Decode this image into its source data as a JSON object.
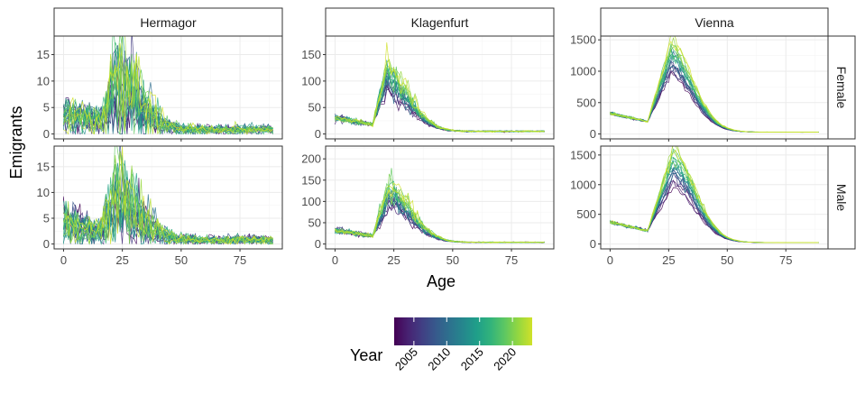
{
  "chart_data": {
    "type": "line",
    "ylabel": "Emigrants",
    "xlabel": "Age",
    "x_range": [
      0,
      89
    ],
    "x_ticks": [
      0,
      25,
      50,
      75
    ],
    "columns": [
      "Hermagor",
      "Klagenfurt",
      "Vienna"
    ],
    "rows": [
      "Female",
      "Male"
    ],
    "years": [
      2002,
      2003,
      2004,
      2005,
      2006,
      2007,
      2008,
      2009,
      2010,
      2011,
      2012,
      2013,
      2014,
      2015,
      2016,
      2017,
      2018,
      2019,
      2020,
      2021,
      2022,
      2023
    ],
    "panels": [
      {
        "column": "Hermagor",
        "row": "Female",
        "ylim": [
          0,
          18.5
        ],
        "y_ticks": [
          0,
          5,
          10,
          15
        ],
        "peak": 9.5,
        "base": 4.0,
        "tail": 0.8,
        "peak_age": 23,
        "noise": 0.55
      },
      {
        "column": "Klagenfurt",
        "row": "Female",
        "ylim": [
          0,
          185
        ],
        "y_ticks": [
          0,
          50,
          100,
          150
        ],
        "peak": 105,
        "base": 30,
        "tail": 5,
        "peak_age": 22,
        "noise": 0.12
      },
      {
        "column": "Vienna",
        "row": "Female",
        "ylim": [
          0,
          1560
        ],
        "y_ticks": [
          0,
          500,
          1000,
          1500
        ],
        "peak": 1200,
        "base": 330,
        "tail": 30,
        "peak_age": 26,
        "noise": 0.04
      },
      {
        "column": "Hermagor",
        "row": "Male",
        "ylim": [
          0,
          19
        ],
        "y_ticks": [
          0,
          5,
          10,
          15
        ],
        "peak": 9.0,
        "base": 3.8,
        "tail": 0.8,
        "peak_age": 23,
        "noise": 0.55
      },
      {
        "column": "Klagenfurt",
        "row": "Male",
        "ylim": [
          0,
          230
        ],
        "y_ticks": [
          0,
          50,
          100,
          150,
          200
        ],
        "peak": 115,
        "base": 32,
        "tail": 4,
        "peak_age": 23,
        "noise": 0.12
      },
      {
        "column": "Vienna",
        "row": "Male",
        "ylim": [
          0,
          1650
        ],
        "y_ticks": [
          0,
          500,
          1000,
          1500
        ],
        "peak": 1280,
        "base": 370,
        "tail": 25,
        "peak_age": 27,
        "noise": 0.04
      }
    ],
    "legend": {
      "title": "Year",
      "ticks": [
        2005,
        2010,
        2015,
        2020
      ],
      "range": [
        2002,
        2023
      ],
      "position": "bottom",
      "palette": "viridis"
    }
  },
  "colors": {
    "panel_border": "#333333",
    "strip_fill": "#ffffff",
    "grid_major": "#ebebeb",
    "grid_minor": "#f5f5f5",
    "viridis": [
      "#440154",
      "#482878",
      "#3e4989",
      "#31688e",
      "#26828e",
      "#1f9e89",
      "#35b779",
      "#6ece58",
      "#b5de2b",
      "#fde725"
    ]
  }
}
